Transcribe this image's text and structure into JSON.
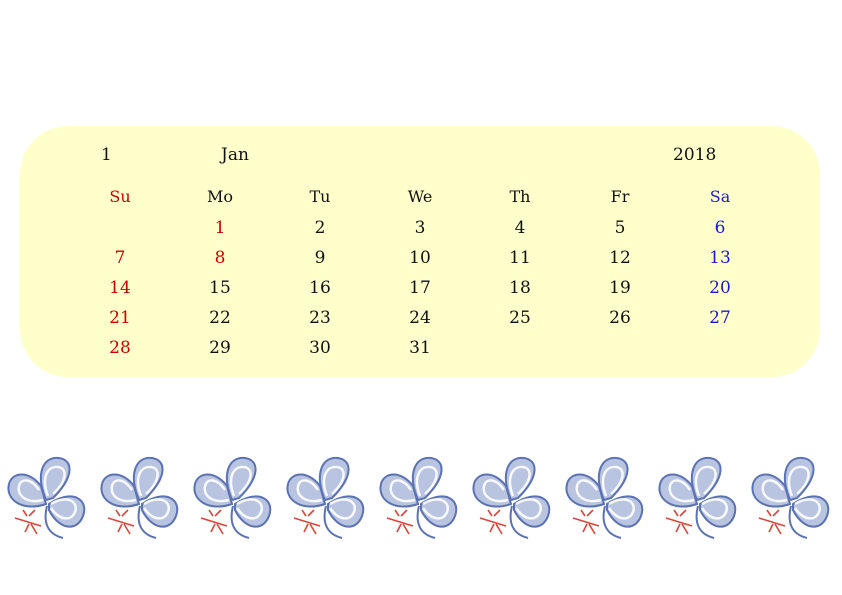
{
  "header": {
    "month_number": "1",
    "month_name": "Jan",
    "year": "2018"
  },
  "weekdays": [
    {
      "label": "Su",
      "color": "#cc0000"
    },
    {
      "label": "Mo",
      "color": "#111111"
    },
    {
      "label": "Tu",
      "color": "#111111"
    },
    {
      "label": "We",
      "color": "#111111"
    },
    {
      "label": "Th",
      "color": "#111111"
    },
    {
      "label": "Fr",
      "color": "#111111"
    },
    {
      "label": "Sa",
      "color": "#1a1acc"
    }
  ],
  "weeks": [
    [
      {
        "d": ""
      },
      {
        "d": "1",
        "holiday": true
      },
      {
        "d": "2"
      },
      {
        "d": "3"
      },
      {
        "d": "4"
      },
      {
        "d": "5"
      },
      {
        "d": "6"
      }
    ],
    [
      {
        "d": "7"
      },
      {
        "d": "8",
        "holiday": true
      },
      {
        "d": "9"
      },
      {
        "d": "10"
      },
      {
        "d": "11"
      },
      {
        "d": "12"
      },
      {
        "d": "13"
      }
    ],
    [
      {
        "d": "14"
      },
      {
        "d": "15"
      },
      {
        "d": "16"
      },
      {
        "d": "17"
      },
      {
        "d": "18"
      },
      {
        "d": "19"
      },
      {
        "d": "20"
      }
    ],
    [
      {
        "d": "21"
      },
      {
        "d": "22"
      },
      {
        "d": "23"
      },
      {
        "d": "24"
      },
      {
        "d": "25"
      },
      {
        "d": "26"
      },
      {
        "d": "27"
      }
    ],
    [
      {
        "d": "28"
      },
      {
        "d": "29"
      },
      {
        "d": "30"
      },
      {
        "d": "31"
      },
      {
        "d": ""
      },
      {
        "d": ""
      },
      {
        "d": ""
      }
    ]
  ],
  "colors": {
    "sunday": "#cc0000",
    "saturday": "#1a1acc",
    "holiday": "#cc0000",
    "weekday": "#111111",
    "card_background": "#ffffcc",
    "clover_fill": "#7f93c9",
    "clover_stroke": "#5b72b3",
    "dragonfly": "#d9473b"
  },
  "decor": {
    "icon": "clover-dragonfly-icon",
    "count": 9
  }
}
